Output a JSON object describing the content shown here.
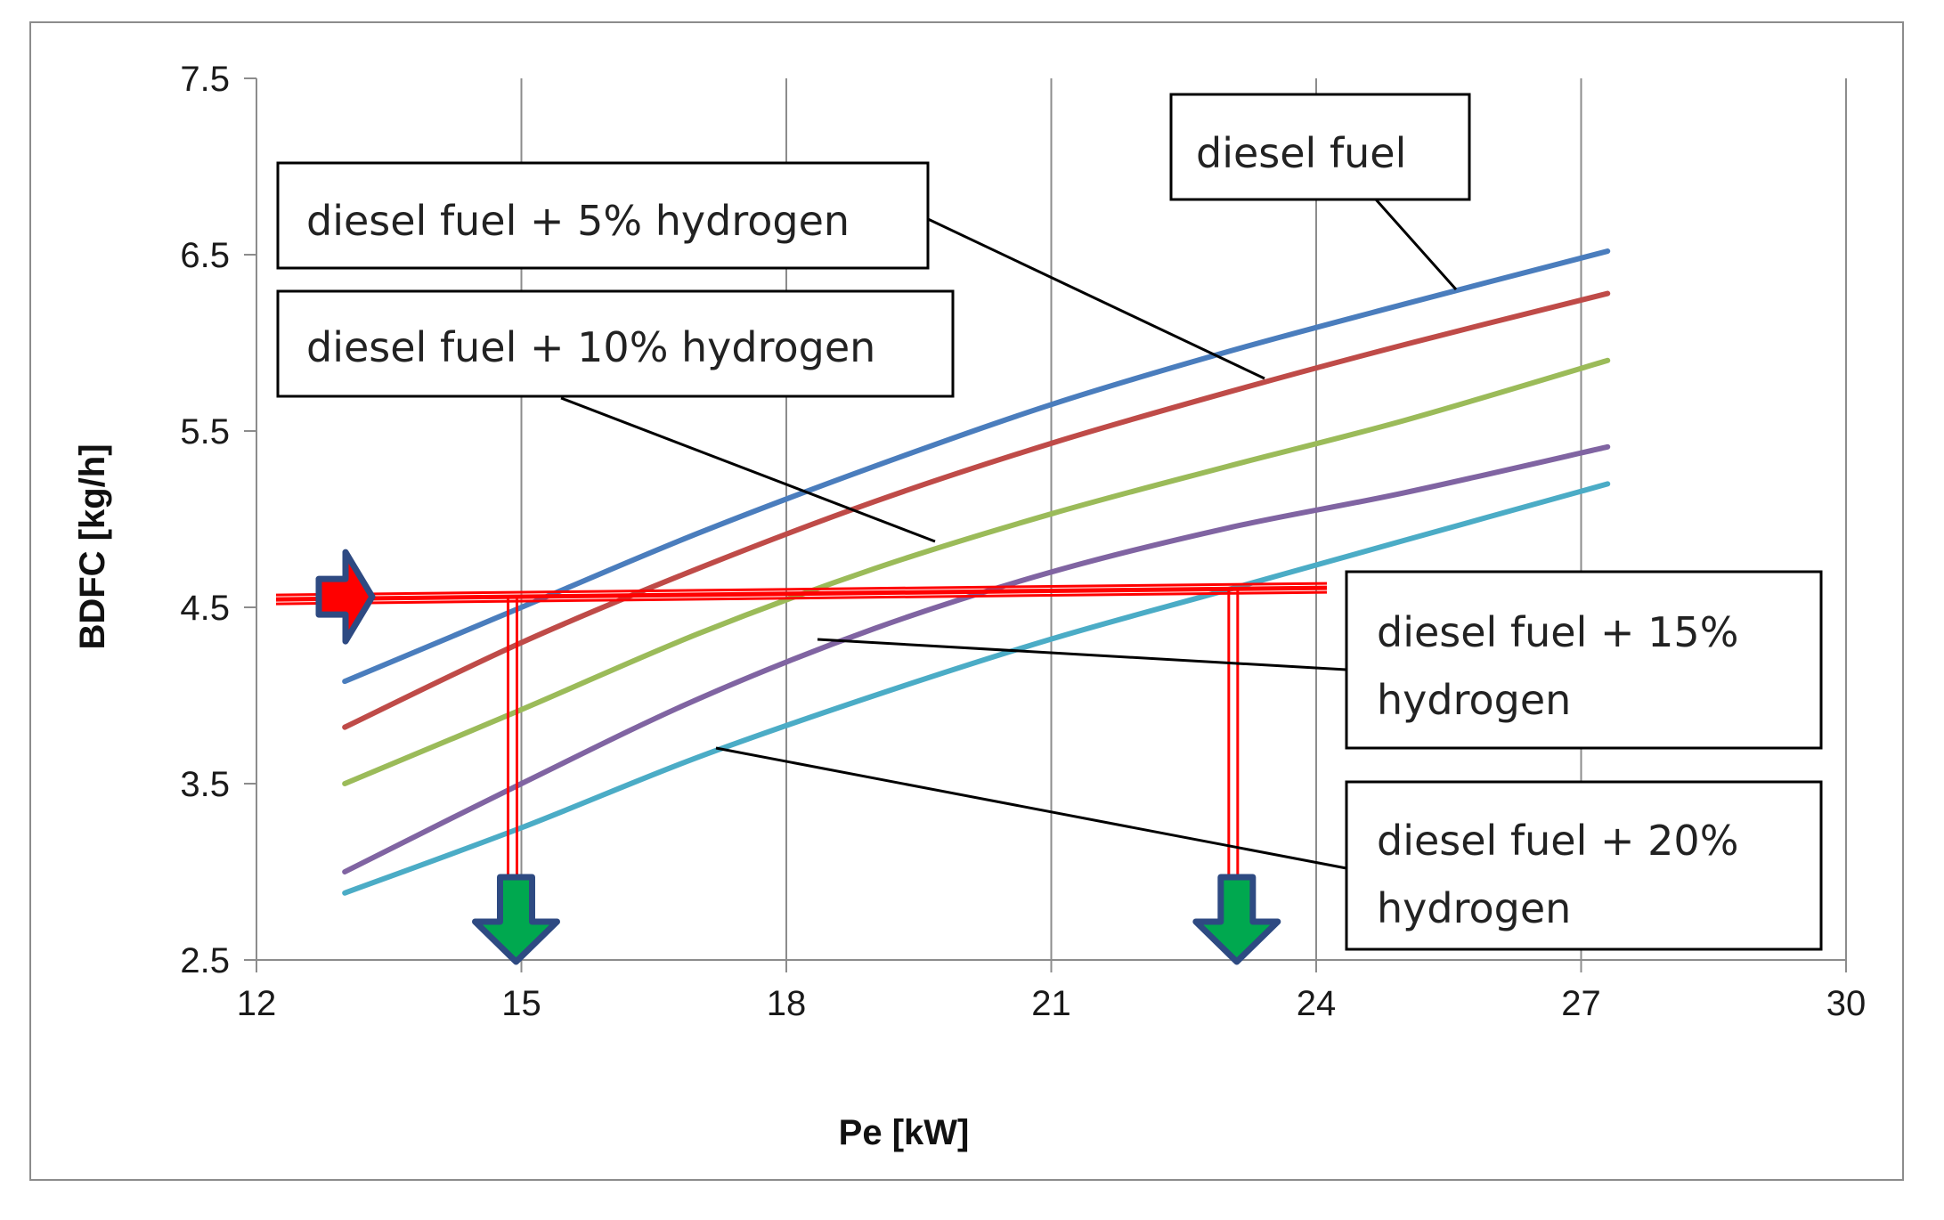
{
  "chart_data": {
    "type": "line",
    "title": "",
    "xlabel": "Pe  [kW]",
    "ylabel": "BDFC [kg/h]",
    "xlim": [
      12,
      30
    ],
    "ylim": [
      2.5,
      7.5
    ],
    "xticks": [
      12,
      15,
      18,
      21,
      24,
      27,
      30
    ],
    "yticks": [
      2.5,
      3.5,
      4.5,
      5.5,
      6.5,
      7.5
    ],
    "xtick_labels": [
      "12",
      "15",
      "18",
      "21",
      "24",
      "27",
      "30"
    ],
    "ytick_labels": [
      "2.5",
      "3.5",
      "4.5",
      "5.5",
      "6.5",
      "7.5"
    ],
    "grid": "vertical",
    "series": [
      {
        "name": "diesel fuel",
        "color": "#4a7dbd",
        "x": [
          13,
          15,
          17,
          19,
          21,
          23,
          25,
          27.3
        ],
        "y": [
          4.08,
          4.5,
          4.92,
          5.3,
          5.65,
          5.95,
          6.22,
          6.52
        ]
      },
      {
        "name": "diesel fuel + 5% hydrogen",
        "color": "#bf4b48",
        "x": [
          13,
          15,
          17,
          19,
          21,
          23,
          25,
          27.3
        ],
        "y": [
          3.82,
          4.3,
          4.72,
          5.1,
          5.43,
          5.72,
          5.99,
          6.28
        ]
      },
      {
        "name": "diesel fuel + 10% hydrogen",
        "color": "#9bbb59",
        "x": [
          13,
          15,
          17,
          19,
          21,
          23,
          25,
          27.3
        ],
        "y": [
          3.5,
          3.92,
          4.35,
          4.72,
          5.03,
          5.3,
          5.56,
          5.9
        ]
      },
      {
        "name": "diesel fuel + 15% hydrogen",
        "color": "#8064a2",
        "x": [
          13,
          15,
          17,
          19,
          21,
          23,
          25,
          27.3
        ],
        "y": [
          3.0,
          3.5,
          3.98,
          4.38,
          4.7,
          4.95,
          5.15,
          5.41
        ]
      },
      {
        "name": "diesel fuel + 20% hydrogen",
        "color": "#4bacc6",
        "x": [
          13,
          15,
          17,
          19,
          21,
          23,
          25,
          27.3
        ],
        "y": [
          2.88,
          3.25,
          3.65,
          4.0,
          4.32,
          4.6,
          4.88,
          5.2
        ]
      }
    ],
    "annotations": {
      "horizontal_reference_y": 4.55,
      "vertical_reference_x": [
        15,
        23
      ],
      "arrow_colors": {
        "input": "#ff0000",
        "output": "#00a84f",
        "outline": "#2e4a82",
        "guide": "#ff0000"
      }
    },
    "labels": [
      {
        "lines": [
          "diesel fuel"
        ],
        "series": 0
      },
      {
        "lines": [
          "diesel fuel + 5% hydrogen"
        ],
        "series": 1
      },
      {
        "lines": [
          "diesel fuel + 10% hydrogen"
        ],
        "series": 2
      },
      {
        "lines": [
          "diesel fuel + 15%",
          "hydrogen"
        ],
        "series": 3
      },
      {
        "lines": [
          "diesel fuel + 20%",
          "hydrogen"
        ],
        "series": 4
      }
    ]
  }
}
